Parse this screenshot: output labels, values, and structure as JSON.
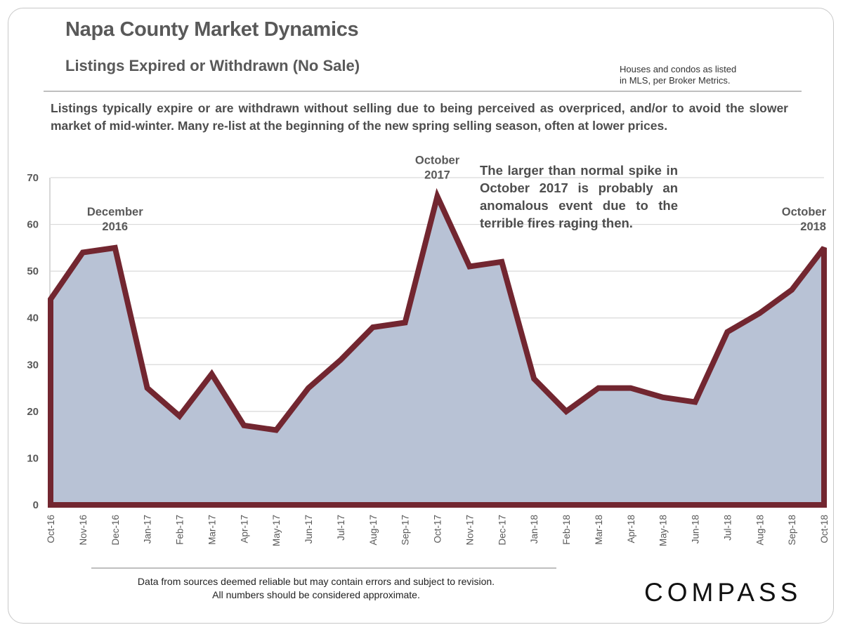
{
  "header": {
    "title": "Napa County Market Dynamics",
    "subtitle": "Listings Expired or Withdrawn (No Sale)",
    "source_note_line1": "Houses and condos as listed",
    "source_note_line2": "in MLS, per Broker Metrics."
  },
  "description": "Listings typically expire or are withdrawn without selling due to being perceived as overpriced, and/or to avoid the slower market of mid-winter. Many re-list at the beginning of the new spring selling season, often at lower prices.",
  "callout": "The larger than normal spike in October 2017 is probably an anomalous event due to the terrible fires raging then.",
  "footer": {
    "disclaimer_line1": "Data from sources deemed reliable but may contain errors and subject to revision.",
    "disclaimer_line2": "All numbers should be considered approximate.",
    "logo": "COMPASS"
  },
  "colors": {
    "line": "#722630",
    "fill": "#b8c2d5",
    "grid": "#d9d9d9",
    "text": "#595959"
  },
  "chart_data": {
    "type": "area",
    "title": "Listings Expired or Withdrawn (No Sale)",
    "xlabel": "",
    "ylabel": "",
    "ylim": [
      0,
      70
    ],
    "yticks": [
      0,
      10,
      20,
      30,
      40,
      50,
      60,
      70
    ],
    "grid": true,
    "legend": "none",
    "categories": [
      "Oct-16",
      "Nov-16",
      "Dec-16",
      "Jan-17",
      "Feb-17",
      "Mar-17",
      "Apr-17",
      "May-17",
      "Jun-17",
      "Jul-17",
      "Aug-17",
      "Sep-17",
      "Oct-17",
      "Nov-17",
      "Dec-17",
      "Jan-18",
      "Feb-18",
      "Mar-18",
      "Apr-18",
      "May-18",
      "Jun-18",
      "Jul-18",
      "Aug-18",
      "Sep-18",
      "Oct-18"
    ],
    "series": [
      {
        "name": "Listings Expired or Withdrawn",
        "values": [
          44,
          54,
          55,
          25,
          19,
          28,
          17,
          16,
          25,
          31,
          38,
          39,
          66,
          51,
          52,
          27,
          20,
          25,
          25,
          23,
          22,
          37,
          41,
          46,
          55
        ]
      }
    ],
    "annotations": [
      {
        "category": "Dec-16",
        "line1": "December",
        "line2": "2016"
      },
      {
        "category": "Oct-17",
        "line1": "October",
        "line2": "2017"
      },
      {
        "category": "Oct-18",
        "line1": "October",
        "line2": "2018"
      }
    ]
  }
}
